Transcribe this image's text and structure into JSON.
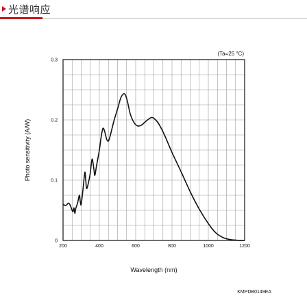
{
  "header": {
    "title": "光谱响应"
  },
  "chart_data": {
    "type": "line",
    "xlabel": "Wavelength (nm)",
    "ylabel": "Photo sensitivity (A/W)",
    "condition_note": "(Ta=25 °C)",
    "figure_code": "KMPDB0149EA",
    "xlim": [
      200,
      1200
    ],
    "ylim": [
      0,
      0.3
    ],
    "xticks": [
      "200",
      "400",
      "600",
      "800",
      "1000",
      "1200"
    ],
    "yticks": [
      "0",
      "0.1",
      "0.2",
      "0.3"
    ],
    "grid": true,
    "series": [
      {
        "points": [
          [
            200,
            0.06
          ],
          [
            215,
            0.058
          ],
          [
            230,
            0.062
          ],
          [
            240,
            0.058
          ],
          [
            250,
            0.05
          ],
          [
            255,
            0.048
          ],
          [
            260,
            0.054
          ],
          [
            265,
            0.045
          ],
          [
            270,
            0.053
          ],
          [
            280,
            0.062
          ],
          [
            290,
            0.075
          ],
          [
            295,
            0.064
          ],
          [
            300,
            0.06
          ],
          [
            310,
            0.085
          ],
          [
            320,
            0.113
          ],
          [
            325,
            0.1
          ],
          [
            330,
            0.086
          ],
          [
            340,
            0.096
          ],
          [
            350,
            0.112
          ],
          [
            360,
            0.135
          ],
          [
            370,
            0.118
          ],
          [
            375,
            0.108
          ],
          [
            385,
            0.125
          ],
          [
            400,
            0.15
          ],
          [
            410,
            0.172
          ],
          [
            420,
            0.186
          ],
          [
            430,
            0.18
          ],
          [
            440,
            0.168
          ],
          [
            450,
            0.165
          ],
          [
            460,
            0.174
          ],
          [
            480,
            0.198
          ],
          [
            500,
            0.218
          ],
          [
            520,
            0.238
          ],
          [
            540,
            0.243
          ],
          [
            555,
            0.23
          ],
          [
            570,
            0.21
          ],
          [
            590,
            0.196
          ],
          [
            610,
            0.19
          ],
          [
            630,
            0.191
          ],
          [
            650,
            0.196
          ],
          [
            670,
            0.201
          ],
          [
            690,
            0.204
          ],
          [
            710,
            0.2
          ],
          [
            730,
            0.192
          ],
          [
            760,
            0.174
          ],
          [
            800,
            0.146
          ],
          [
            850,
            0.114
          ],
          [
            900,
            0.081
          ],
          [
            950,
            0.052
          ],
          [
            1000,
            0.028
          ],
          [
            1040,
            0.013
          ],
          [
            1080,
            0.005
          ],
          [
            1120,
            0.0015
          ],
          [
            1160,
            0.0004
          ],
          [
            1200,
            0.0
          ]
        ]
      }
    ]
  }
}
